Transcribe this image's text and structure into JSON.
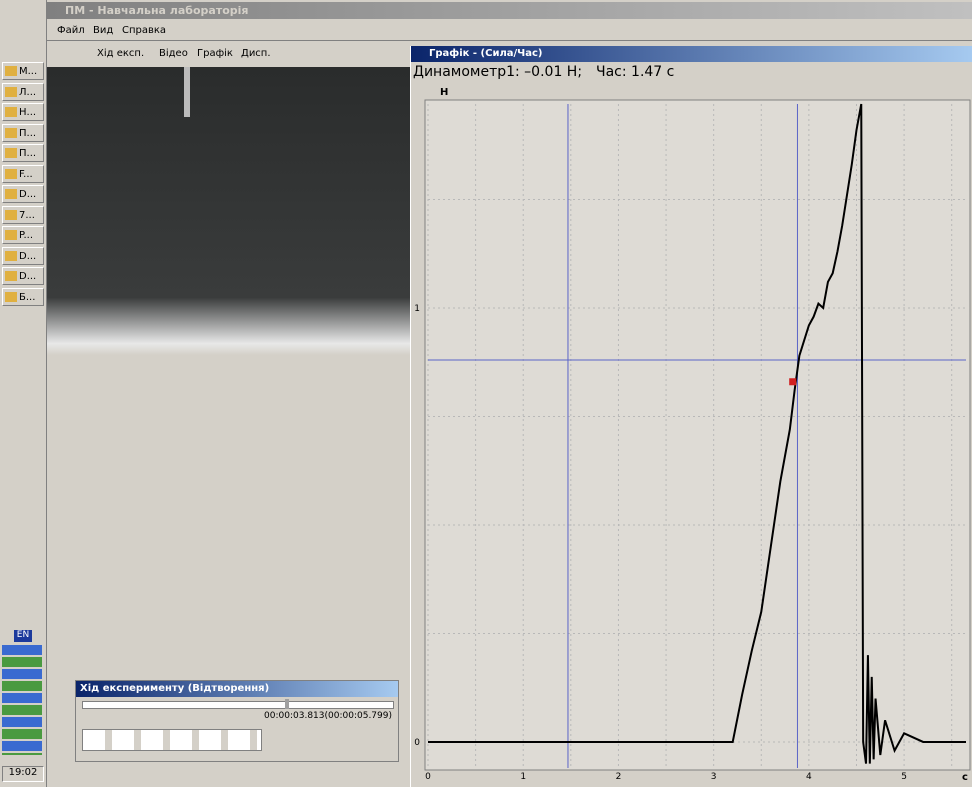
{
  "window": {
    "title": "ПМ - Навчальна лабораторія",
    "menu": [
      "Файл",
      "Вид",
      "Справка"
    ],
    "toolbar": [
      "Хід експ.",
      "Відео",
      "Графік",
      "Дисп."
    ]
  },
  "taskbar": {
    "items": [
      "М...",
      "Л...",
      "Н...",
      "П...",
      "П...",
      "F...",
      "D...",
      "7...",
      "P...",
      "D...",
      "D...",
      "Б..."
    ],
    "language": "EN",
    "clock": "19:02"
  },
  "graph_window": {
    "title": "Графік - (Сила/Час)",
    "readout": {
      "sensor": "Динамометр1: –0.01 Н;",
      "time": "Час: 1.47 с"
    }
  },
  "player": {
    "title": "Хід експерименту (Відтворення)",
    "time": "00:00:03.813(00:00:05.799)"
  },
  "chart_data": {
    "type": "line",
    "y_label": "Н",
    "x_label": "с",
    "x": [
      0,
      0.5,
      1,
      1.5,
      2,
      2.5,
      3,
      3.2,
      3.3,
      3.4,
      3.5,
      3.6,
      3.7,
      3.8,
      3.85,
      3.9,
      4.0,
      4.05,
      4.1,
      4.15,
      4.2,
      4.25,
      4.3,
      4.35,
      4.4,
      4.45,
      4.5,
      4.55,
      4.57,
      4.6,
      4.62,
      4.64,
      4.66,
      4.68,
      4.7,
      4.75,
      4.8,
      4.9,
      5.0,
      5.2,
      5.65
    ],
    "series": [
      {
        "color": "#000000",
        "values": [
          0,
          0,
          0,
          0,
          0,
          0,
          0,
          0,
          0.11,
          0.21,
          0.3,
          0.45,
          0.6,
          0.72,
          0.81,
          0.89,
          0.96,
          0.98,
          1.01,
          1.0,
          1.06,
          1.08,
          1.13,
          1.19,
          1.26,
          1.33,
          1.41,
          1.47,
          0,
          -0.05,
          0.2,
          -0.05,
          0.15,
          -0.04,
          0.1,
          -0.03,
          0.05,
          -0.02,
          0.02,
          0,
          0
        ]
      }
    ],
    "xlim": [
      0,
      5.65
    ],
    "ylim": [
      -0.06,
      1.47
    ],
    "xticks": [
      0,
      1,
      2,
      3,
      4,
      5
    ],
    "yticks": [
      0,
      1
    ],
    "xgrid": [
      0.5,
      1.5,
      2.5,
      3.5,
      4.5,
      5.5
    ],
    "ygrid": [
      0.25,
      0.5,
      0.75,
      1.25
    ],
    "cursor_color": "#5a64c8",
    "cursors_x": [
      1.47,
      3.88
    ],
    "cursors_y": [
      0.88
    ],
    "marker": {
      "x": 3.83,
      "y": 0.83,
      "color": "#d02020"
    }
  }
}
